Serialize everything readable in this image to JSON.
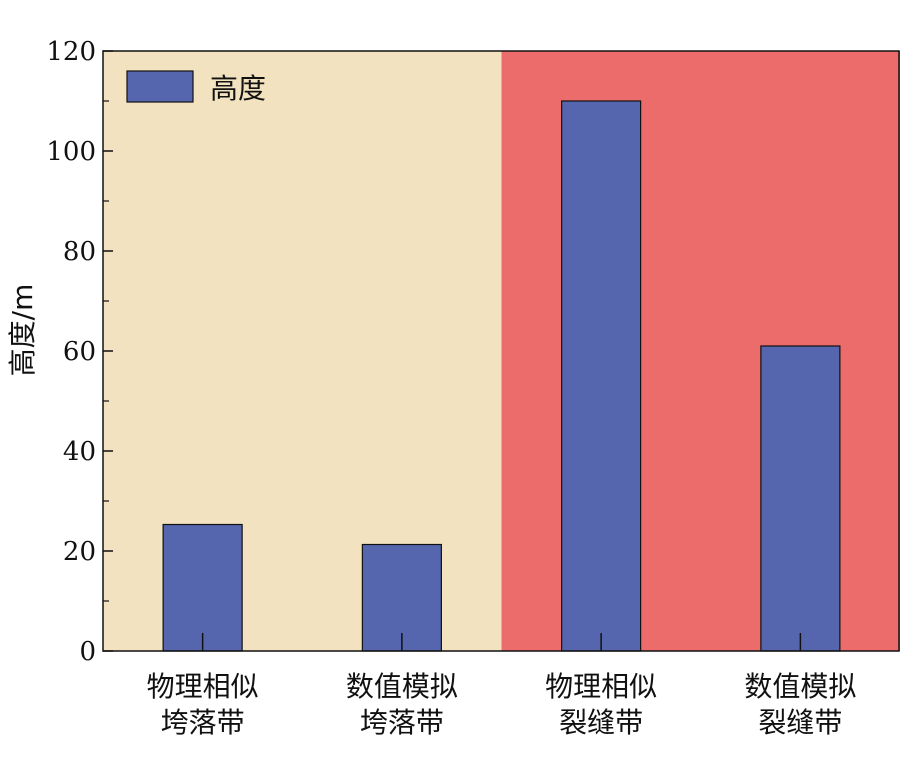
{
  "chart_data": {
    "type": "bar",
    "categories": [
      [
        "物理相似",
        "垮落带"
      ],
      [
        "数值模拟",
        "垮落带"
      ],
      [
        "物理相似",
        "裂缝带"
      ],
      [
        "数值模拟",
        "裂缝带"
      ]
    ],
    "series": [
      {
        "name": "高度",
        "values": [
          25.3,
          21.3,
          110,
          61
        ],
        "color": "#5566ae"
      }
    ],
    "xlabel": "",
    "ylabel": "高度/m",
    "ylim": [
      0,
      120
    ],
    "yticks": [
      0,
      20,
      40,
      60,
      80,
      100,
      120
    ],
    "background_regions": [
      {
        "categories": [
          0,
          1
        ],
        "color": "#f3e2bf"
      },
      {
        "categories": [
          2,
          3
        ],
        "color": "#ec6c6c"
      }
    ],
    "grid": false,
    "legend": {
      "position": "top-left",
      "entries": [
        "高度"
      ]
    }
  }
}
